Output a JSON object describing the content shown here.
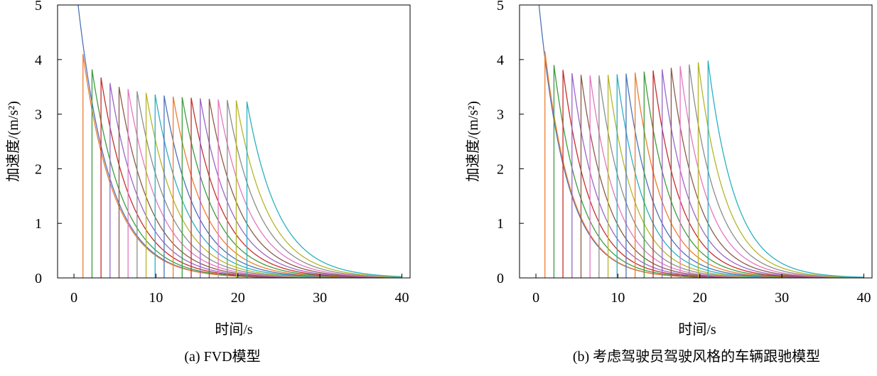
{
  "chart_data": [
    {
      "type": "line",
      "caption": "(a) FVD模型",
      "xlabel": "时间/s",
      "ylabel": "加速度/(m/s²)",
      "xlim": [
        -2,
        41
      ],
      "ylim": [
        0,
        5
      ],
      "xticks": [
        0,
        10,
        20,
        30,
        40
      ],
      "yticks": [
        0,
        1,
        2,
        3,
        4,
        5
      ],
      "grid": false,
      "legend": "none",
      "x_end": 40,
      "decay_rate": 0.26,
      "series": [
        {
          "start": 0.0,
          "peak": 5.7,
          "color": "#4e72b8"
        },
        {
          "start": 1.1,
          "peak": 4.1,
          "color": "#ed7d31"
        },
        {
          "start": 2.2,
          "peak": 3.82,
          "color": "#3f9b3f"
        },
        {
          "start": 3.3,
          "peak": 3.67,
          "color": "#c62e2e"
        },
        {
          "start": 4.4,
          "peak": 3.57,
          "color": "#9966c7"
        },
        {
          "start": 5.5,
          "peak": 3.5,
          "color": "#8c5a4a"
        },
        {
          "start": 6.6,
          "peak": 3.46,
          "color": "#e277c1"
        },
        {
          "start": 7.7,
          "peak": 3.42,
          "color": "#8c8c8c"
        },
        {
          "start": 8.8,
          "peak": 3.39,
          "color": "#b5b52a"
        },
        {
          "start": 9.9,
          "peak": 3.36,
          "color": "#2ab0c0"
        },
        {
          "start": 11.0,
          "peak": 3.34,
          "color": "#4e72b8"
        },
        {
          "start": 12.1,
          "peak": 3.32,
          "color": "#ed7d31"
        },
        {
          "start": 13.2,
          "peak": 3.31,
          "color": "#3f9b3f"
        },
        {
          "start": 14.3,
          "peak": 3.3,
          "color": "#c62e2e"
        },
        {
          "start": 15.4,
          "peak": 3.29,
          "color": "#9966c7"
        },
        {
          "start": 16.5,
          "peak": 3.28,
          "color": "#8c5a4a"
        },
        {
          "start": 17.6,
          "peak": 3.27,
          "color": "#e277c1"
        },
        {
          "start": 18.7,
          "peak": 3.26,
          "color": "#8c8c8c"
        },
        {
          "start": 19.8,
          "peak": 3.25,
          "color": "#b5b52a"
        },
        {
          "start": 21.1,
          "peak": 3.23,
          "color": "#2ab0c0"
        }
      ]
    },
    {
      "type": "line",
      "caption": "(b) 考虑驾驶员驾驶风格的车辆跟驰模型",
      "xlabel": "时间/s",
      "ylabel": "加速度/(m/s²)",
      "xlim": [
        -2,
        41
      ],
      "ylim": [
        0,
        5
      ],
      "xticks": [
        0,
        10,
        20,
        30,
        40
      ],
      "yticks": [
        0,
        1,
        2,
        3,
        4,
        5
      ],
      "grid": false,
      "legend": "none",
      "x_end": 40,
      "decay_rate": 0.3,
      "series": [
        {
          "start": 0.0,
          "peak": 5.6,
          "color": "#4e72b8"
        },
        {
          "start": 1.1,
          "peak": 4.15,
          "color": "#ed7d31"
        },
        {
          "start": 2.2,
          "peak": 3.9,
          "color": "#3f9b3f"
        },
        {
          "start": 3.3,
          "peak": 3.81,
          "color": "#c62e2e"
        },
        {
          "start": 4.4,
          "peak": 3.75,
          "color": "#9966c7"
        },
        {
          "start": 5.5,
          "peak": 3.72,
          "color": "#8c5a4a"
        },
        {
          "start": 6.6,
          "peak": 3.71,
          "color": "#e277c1"
        },
        {
          "start": 7.7,
          "peak": 3.71,
          "color": "#8c8c8c"
        },
        {
          "start": 8.8,
          "peak": 3.72,
          "color": "#b5b52a"
        },
        {
          "start": 9.9,
          "peak": 3.73,
          "color": "#2ab0c0"
        },
        {
          "start": 11.0,
          "peak": 3.74,
          "color": "#4e72b8"
        },
        {
          "start": 12.1,
          "peak": 3.76,
          "color": "#ed7d31"
        },
        {
          "start": 13.2,
          "peak": 3.78,
          "color": "#3f9b3f"
        },
        {
          "start": 14.3,
          "peak": 3.8,
          "color": "#c62e2e"
        },
        {
          "start": 15.4,
          "peak": 3.82,
          "color": "#9966c7"
        },
        {
          "start": 16.5,
          "peak": 3.85,
          "color": "#8c5a4a"
        },
        {
          "start": 17.6,
          "peak": 3.88,
          "color": "#e277c1"
        },
        {
          "start": 18.7,
          "peak": 3.91,
          "color": "#8c8c8c"
        },
        {
          "start": 19.8,
          "peak": 3.95,
          "color": "#b5b52a"
        },
        {
          "start": 21.0,
          "peak": 3.98,
          "color": "#2ab0c0"
        }
      ]
    }
  ]
}
